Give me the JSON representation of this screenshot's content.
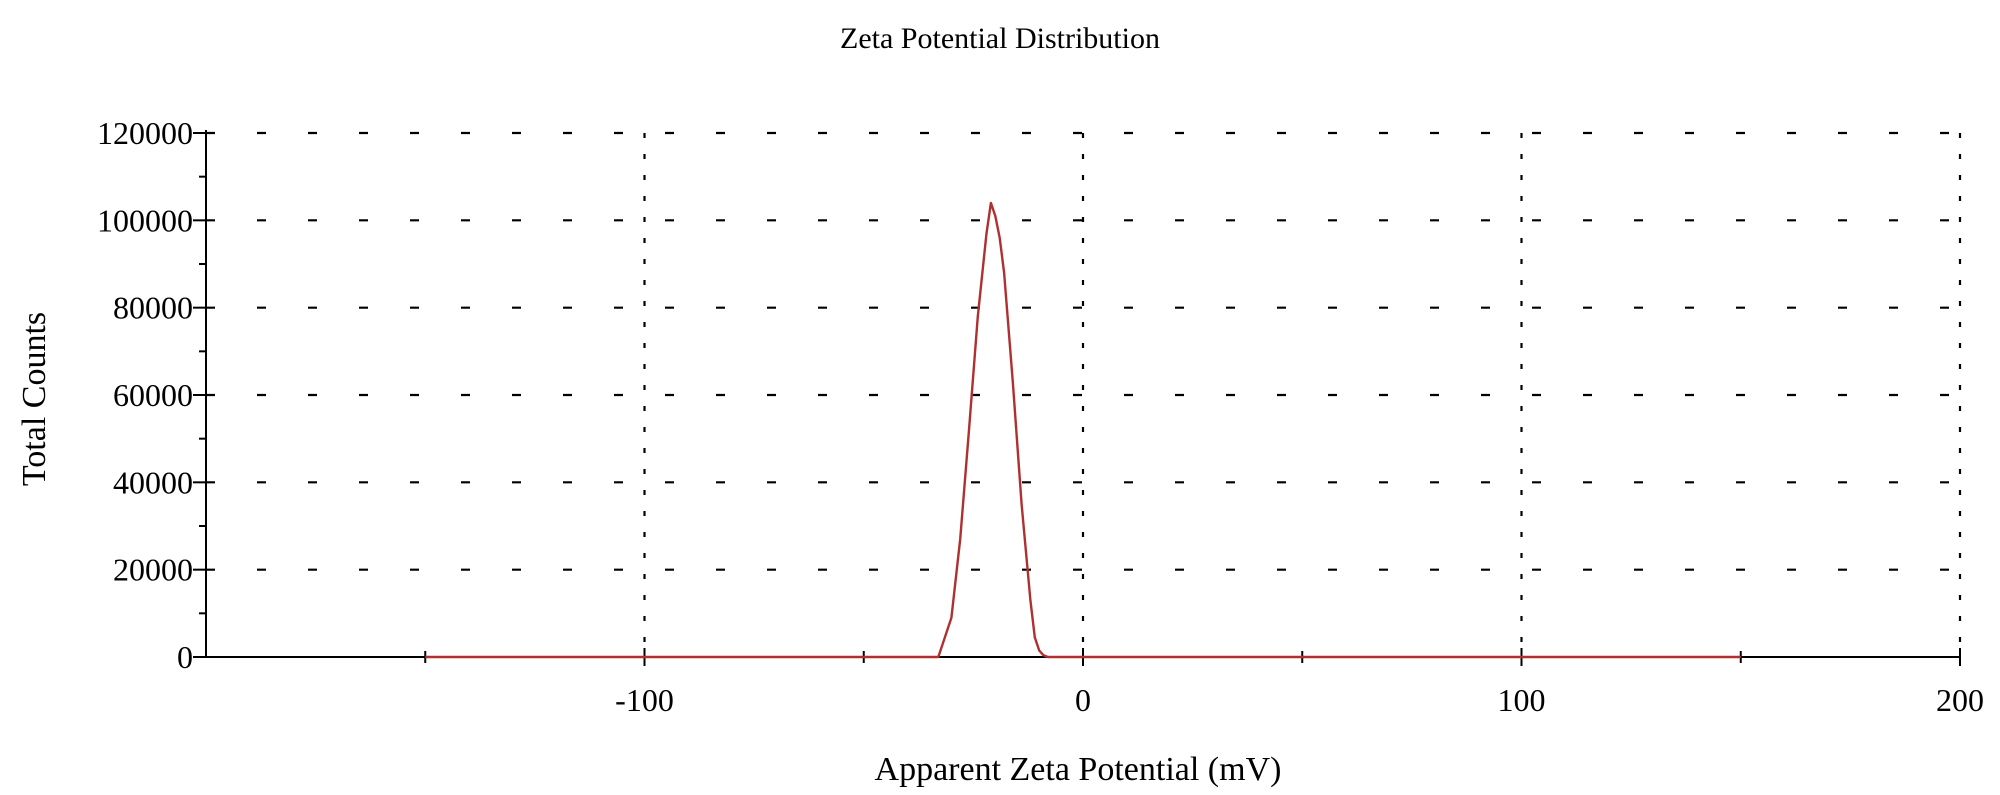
{
  "chart_data": {
    "type": "line",
    "title": "Zeta Potential Distribution",
    "xlabel": "Apparent Zeta Potential (mV)",
    "ylabel": "Total Counts",
    "xlim": [
      -200,
      200
    ],
    "ylim": [
      0,
      120000
    ],
    "x_ticks": [
      -100,
      0,
      100,
      200
    ],
    "y_ticks": [
      0,
      20000,
      40000,
      60000,
      80000,
      100000,
      120000
    ],
    "grid": true,
    "grid_style": "dotted",
    "series": [
      {
        "color": "#b03030",
        "x": [
          -150,
          -33,
          -32,
          -30,
          -28,
          -26,
          -24,
          -22,
          -21,
          -20,
          -19,
          -18,
          -16,
          -14,
          -12,
          -11,
          -10,
          -9,
          -8,
          150
        ],
        "values": [
          0,
          0,
          3000,
          9000,
          27000,
          52000,
          78000,
          97000,
          104000,
          101000,
          96000,
          88000,
          63000,
          35000,
          13000,
          4500,
          1500,
          400,
          0,
          0
        ]
      }
    ]
  }
}
